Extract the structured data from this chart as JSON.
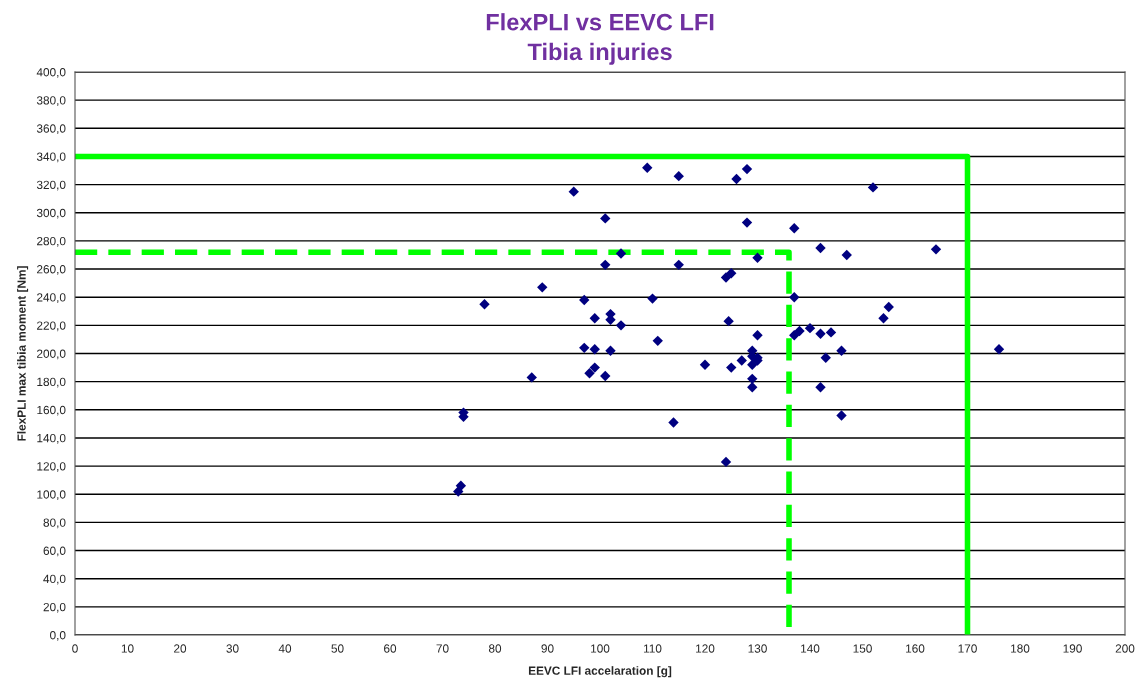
{
  "chart_data": {
    "type": "scatter",
    "title": "FlexPLI vs EEVC LFI",
    "subtitle": "Tibia injuries",
    "xlabel": "EEVC LFI accelaration [g]",
    "ylabel": "FlexPLI max tibia moment [Nm]",
    "xlim": [
      0,
      200
    ],
    "xticks": [
      0,
      10,
      20,
      30,
      40,
      50,
      60,
      70,
      80,
      90,
      100,
      110,
      120,
      130,
      140,
      150,
      160,
      170,
      180,
      190,
      200
    ],
    "ylim": [
      0,
      400
    ],
    "yticks": [
      {
        "value": 0,
        "label": "0,0"
      },
      {
        "value": 20,
        "label": "20,0"
      },
      {
        "value": 40,
        "label": "40,0"
      },
      {
        "value": 60,
        "label": "60,0"
      },
      {
        "value": 80,
        "label": "80,0"
      },
      {
        "value": 100,
        "label": "100,0"
      },
      {
        "value": 120,
        "label": "120,0"
      },
      {
        "value": 140,
        "label": "140,0"
      },
      {
        "value": 160,
        "label": "160,0"
      },
      {
        "value": 180,
        "label": "180,0"
      },
      {
        "value": 200,
        "label": "200,0"
      },
      {
        "value": 220,
        "label": "220,0"
      },
      {
        "value": 240,
        "label": "240,0"
      },
      {
        "value": 260,
        "label": "260,0"
      },
      {
        "value": 280,
        "label": "280,0"
      },
      {
        "value": 300,
        "label": "300,0"
      },
      {
        "value": 320,
        "label": "320,0"
      },
      {
        "value": 340,
        "label": "340,0"
      },
      {
        "value": 360,
        "label": "360,0"
      },
      {
        "value": 380,
        "label": "380,0"
      },
      {
        "value": 400,
        "label": "400,0"
      }
    ],
    "grid": "y",
    "marker": "diamond",
    "series": [
      {
        "color": "#000080",
        "x": [
          73,
          73.5,
          74,
          74,
          78,
          87,
          89,
          95,
          97,
          97,
          98,
          99,
          99,
          99,
          101,
          101,
          101,
          102,
          102,
          102,
          104,
          104,
          109,
          110,
          111,
          114,
          115,
          115,
          120,
          124,
          124,
          124.5,
          125,
          125,
          126,
          127,
          128,
          128,
          129,
          129,
          129,
          129,
          129,
          130,
          130,
          130,
          130,
          137,
          137,
          137,
          138,
          140,
          142,
          142,
          142,
          143,
          144,
          146,
          146,
          147,
          152,
          154,
          155,
          164,
          176
        ],
        "values": [
          102,
          106,
          158,
          155,
          235,
          183,
          247,
          315,
          238,
          204,
          186,
          190,
          225,
          203,
          296,
          263,
          184,
          228,
          224,
          202,
          271,
          220,
          332,
          239,
          209,
          151,
          326,
          263,
          192,
          123,
          254,
          223,
          190,
          257,
          324,
          195,
          331,
          293,
          202,
          198,
          192,
          182,
          176,
          268,
          213,
          197,
          195,
          289,
          240,
          213,
          216,
          218,
          275,
          214,
          176,
          197,
          215,
          202,
          156,
          270,
          318,
          225,
          233,
          274,
          203
        ]
      },
      {
        "type": "line",
        "color": "#00ff00",
        "line_style": "solid",
        "marker": "none",
        "x": [
          0,
          170,
          170
        ],
        "values": [
          340,
          340,
          0
        ]
      },
      {
        "type": "line",
        "color": "#00ff00",
        "line_style": "dashed",
        "marker": "none",
        "x": [
          0,
          136,
          136
        ],
        "values": [
          272,
          272,
          0
        ]
      }
    ]
  }
}
